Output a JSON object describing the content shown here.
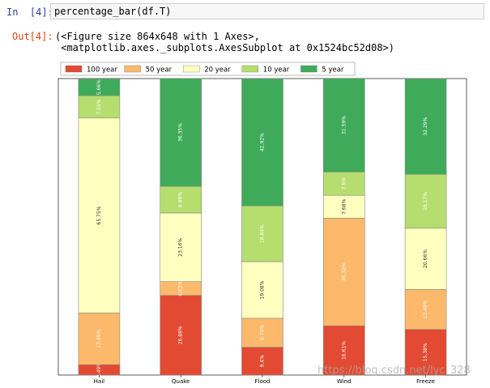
{
  "cell_in": {
    "prompt": "In  [4]:",
    "code": "percentage_bar(df.T)"
  },
  "cell_out": {
    "prompt": "Out[4]:",
    "lines": [
      "(<Figure size 864x648 with 1 Axes>,",
      " <matplotlib.axes._subplots.AxesSubplot at 0x1524bc52d08>)"
    ]
  },
  "watermark": "https://blog.csdn.net/lyc_328",
  "chart_data": {
    "type": "bar",
    "stacked": true,
    "orientation": "vertical",
    "categories": [
      "Hail",
      "Quake",
      "Flood",
      "Wind",
      "Freeze"
    ],
    "ylim": [
      0,
      100
    ],
    "legend_position": "top-left",
    "series": [
      {
        "name": "100 year",
        "color": "#e34a33",
        "values": [
          3.49,
          26.88,
          9.4,
          16.61,
          15.38
        ],
        "labels": [
          "3.49%",
          "26.88%",
          "9.4%",
          "16.61%",
          "15.38%"
        ]
      },
      {
        "name": "50 year",
        "color": "#fdb96b",
        "values": [
          17.45,
          4.63,
          9.75,
          36.32,
          13.49
        ],
        "labels": [
          "17.45%",
          "4.63%",
          "9.75%",
          "36.32%",
          "13.49%"
        ]
      },
      {
        "name": "20 year",
        "color": "#ffffbf",
        "values": [
          65.75,
          23.16,
          19.08,
          7.68,
          20.66
        ],
        "labels": [
          "65.75%",
          "23.16%",
          "19.08%",
          "7.68%",
          "20.66%"
        ]
      },
      {
        "name": "10 year",
        "color": "#b5de6f",
        "values": [
          7.55,
          8.99,
          18.84,
          7.9,
          18.17
        ],
        "labels": [
          "7.55%",
          "8.99%",
          "18.84%",
          "7.9%",
          "18.17%"
        ]
      },
      {
        "name": "5 year",
        "color": "#3fab5a",
        "values": [
          5.66,
          36.35,
          42.92,
          31.59,
          32.29
        ],
        "labels": [
          "5.66%",
          "36.35%",
          "42.92%",
          "31.59%",
          "32.29%"
        ]
      }
    ]
  }
}
